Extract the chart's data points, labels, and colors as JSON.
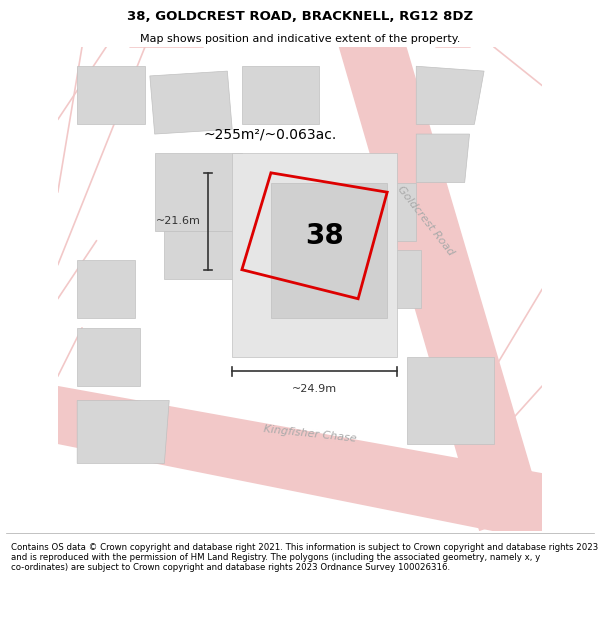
{
  "title": "38, GOLDCREST ROAD, BRACKNELL, RG12 8DZ",
  "subtitle": "Map shows position and indicative extent of the property.",
  "footer": "Contains OS data © Crown copyright and database right 2021. This information is subject to Crown copyright and database rights 2023 and is reproduced with the permission of HM Land Registry. The polygons (including the associated geometry, namely x, y co-ordinates) are subject to Crown copyright and database rights 2023 Ordnance Survey 100026316.",
  "area_label": "~255m²/~0.063ac.",
  "property_number": "38",
  "dim_width": "~24.9m",
  "dim_height": "~21.6m",
  "road_label_1": "Goldcrest Road",
  "road_label_2": "Kingfisher Chase",
  "bg_color": "#ffffff",
  "map_bg": "#f7f7f7",
  "plot_outline_color": "#dd0000",
  "road_fill_color": "#f2c8c8",
  "building_color": "#d6d6d6",
  "building_outline": "#c0c0c0",
  "dim_color": "#333333"
}
